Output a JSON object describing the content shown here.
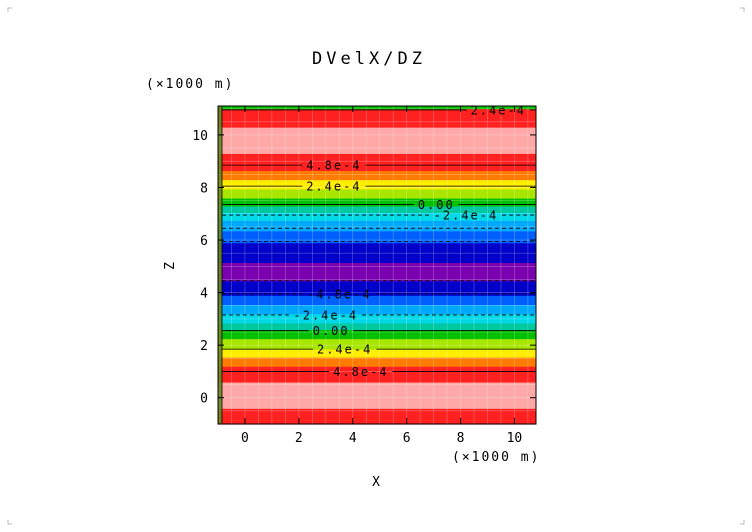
{
  "chart_data": {
    "type": "heatmap",
    "title": "DVelX/DZ",
    "xlabel": "X",
    "ylabel": "Z",
    "x_unit_label": "(×1000 m)",
    "y_unit_label": "(×1000 m)",
    "xlim": [
      -1.0,
      10.8
    ],
    "ylim": [
      -1.0,
      11.1
    ],
    "x_ticks": [
      0,
      2,
      4,
      6,
      8,
      10
    ],
    "y_ticks": [
      0,
      2,
      4,
      6,
      8,
      10
    ],
    "grid": true,
    "bands_z": [
      {
        "z0": -1.0,
        "z1": -0.4,
        "color": "#ff2020"
      },
      {
        "z0": -0.4,
        "z1": 0.6,
        "color": "#ffa8a8"
      },
      {
        "z0": 0.6,
        "z1": 1.2,
        "color": "#ff2020"
      },
      {
        "z0": 1.2,
        "z1": 1.55,
        "color": "#ff7a00"
      },
      {
        "z0": 1.55,
        "z1": 1.85,
        "color": "#ffee00"
      },
      {
        "z0": 1.85,
        "z1": 2.25,
        "color": "#a8e600"
      },
      {
        "z0": 2.25,
        "z1": 2.6,
        "color": "#00c000"
      },
      {
        "z0": 2.6,
        "z1": 2.85,
        "color": "#00c8a0"
      },
      {
        "z0": 2.85,
        "z1": 3.2,
        "color": "#00d8e8"
      },
      {
        "z0": 3.2,
        "z1": 3.55,
        "color": "#00a8ff"
      },
      {
        "z0": 3.55,
        "z1": 3.9,
        "color": "#0060ff"
      },
      {
        "z0": 3.9,
        "z1": 4.45,
        "color": "#0000c8"
      },
      {
        "z0": 4.45,
        "z1": 5.15,
        "color": "#7a00b0"
      },
      {
        "z0": 5.15,
        "z1": 5.9,
        "color": "#0000c8"
      },
      {
        "z0": 5.9,
        "z1": 6.35,
        "color": "#0060ff"
      },
      {
        "z0": 6.35,
        "z1": 6.75,
        "color": "#00a8ff"
      },
      {
        "z0": 6.75,
        "z1": 7.05,
        "color": "#00d8e8"
      },
      {
        "z0": 7.05,
        "z1": 7.3,
        "color": "#00c8a0"
      },
      {
        "z0": 7.3,
        "z1": 7.6,
        "color": "#00c000"
      },
      {
        "z0": 7.6,
        "z1": 7.95,
        "color": "#a8e600"
      },
      {
        "z0": 7.95,
        "z1": 8.3,
        "color": "#ffee00"
      },
      {
        "z0": 8.3,
        "z1": 8.65,
        "color": "#ff7a00"
      },
      {
        "z0": 8.65,
        "z1": 9.3,
        "color": "#ff2020"
      },
      {
        "z0": 9.3,
        "z1": 10.3,
        "color": "#ffa8a8"
      },
      {
        "z0": 10.3,
        "z1": 11.0,
        "color": "#ff2020"
      },
      {
        "z0": 11.0,
        "z1": 11.1,
        "color": "#00c000"
      }
    ],
    "contours": [
      {
        "z": 10.95,
        "label": "2.4e-4",
        "label_x": 9.4,
        "dashed": false
      },
      {
        "z": 8.85,
        "label": "4.8e-4",
        "label_x": 3.3,
        "dashed": false
      },
      {
        "z": 8.05,
        "label": "2.4e-4",
        "label_x": 3.3,
        "dashed": false
      },
      {
        "z": 7.35,
        "label": "0.00",
        "label_x": 7.1,
        "dashed": false
      },
      {
        "z": 6.95,
        "label": "-2.4e-4",
        "label_x": 8.2,
        "dashed": true
      },
      {
        "z": 6.45,
        "label": "",
        "label_x": null,
        "dashed": true
      },
      {
        "z": 5.95,
        "label": "",
        "label_x": null,
        "dashed": true
      },
      {
        "z": 4.45,
        "label": "",
        "label_x": null,
        "dashed": true
      },
      {
        "z": 3.95,
        "label": "-4.8e-4",
        "label_x": 3.5,
        "dashed": true
      },
      {
        "z": 3.15,
        "label": "-2.4e-4",
        "label_x": 3.0,
        "dashed": true
      },
      {
        "z": 2.55,
        "label": "0.00",
        "label_x": 3.2,
        "dashed": false
      },
      {
        "z": 1.85,
        "label": "2.4e-4",
        "label_x": 3.7,
        "dashed": false
      },
      {
        "z": 1.0,
        "label": "4.8e-4",
        "label_x": 4.3,
        "dashed": false
      }
    ]
  }
}
